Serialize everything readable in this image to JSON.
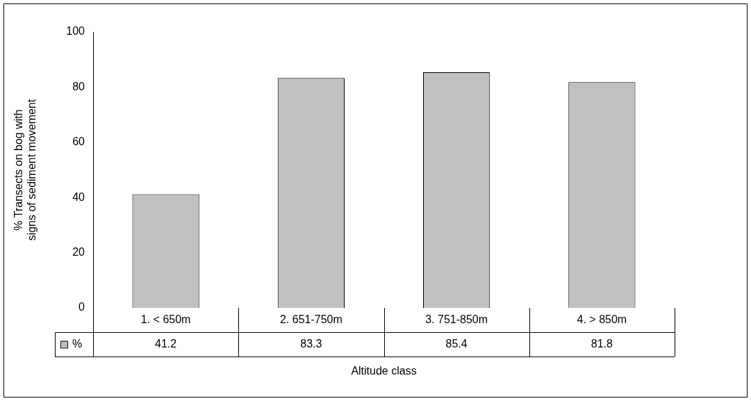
{
  "chart_data": {
    "type": "bar",
    "xlabel": "Altitude class",
    "ylabel": "% Transects on bog with signs of sediment movement",
    "categories": [
      "1. < 650m",
      "2. 651-750m",
      "3. 751-850m",
      "4. > 850m"
    ],
    "series": [
      {
        "name": "%",
        "color": "#c0c0c0",
        "values": [
          41.2,
          83.3,
          85.4,
          81.8
        ]
      }
    ],
    "ylim": [
      0,
      100
    ],
    "yticks": [
      0,
      20,
      40,
      60,
      80,
      100
    ],
    "grid": false,
    "legend": "bottom",
    "data_labels": true
  }
}
